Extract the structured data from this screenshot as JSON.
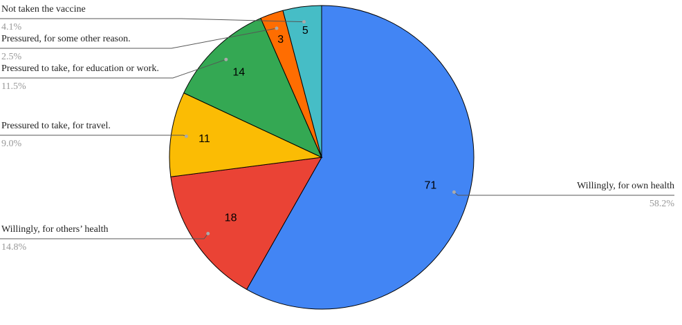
{
  "chart_data": {
    "type": "pie",
    "categories": [
      "Willingly, for own health",
      "Willingly, for others’ health",
      "Pressured to take, for travel.",
      "Pressured to take, for education or work.",
      "Pressured, for some other reason.",
      "Not taken the vaccine"
    ],
    "values": [
      71,
      18,
      11,
      14,
      3,
      5
    ],
    "percentage_labels": [
      "58.2%",
      "14.8%",
      "9.0%",
      "11.5%",
      "2.5%",
      "4.1%"
    ],
    "colors": [
      "#4285f4",
      "#ea4335",
      "#fbbc04",
      "#34a853",
      "#ff6d01",
      "#46bdc6"
    ]
  }
}
